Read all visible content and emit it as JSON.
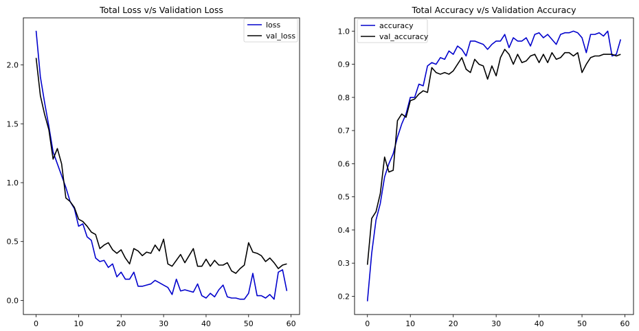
{
  "chart_data": [
    {
      "type": "line",
      "title": "Total Loss v/s Validation Loss",
      "xlabel": "",
      "ylabel": "",
      "xlim": [
        -3,
        62
      ],
      "ylim": [
        -0.12,
        2.4
      ],
      "xticks": [
        0,
        10,
        20,
        30,
        40,
        50,
        60
      ],
      "yticks": [
        0.0,
        0.5,
        1.0,
        1.5,
        2.0
      ],
      "xtick_labels": [
        "0",
        "10",
        "20",
        "30",
        "40",
        "50",
        "60"
      ],
      "ytick_labels": [
        "0.0",
        "0.5",
        "1.0",
        "1.5",
        "2.0"
      ],
      "grid": false,
      "legend_position": "top-right",
      "series": [
        {
          "name": "loss",
          "color": "#0000cc",
          "values": [
            2.29,
            1.9,
            1.68,
            1.48,
            1.26,
            1.16,
            1.06,
            0.96,
            0.84,
            0.78,
            0.63,
            0.65,
            0.54,
            0.51,
            0.36,
            0.33,
            0.34,
            0.28,
            0.31,
            0.2,
            0.24,
            0.18,
            0.18,
            0.24,
            0.12,
            0.12,
            0.13,
            0.14,
            0.17,
            0.15,
            0.13,
            0.11,
            0.05,
            0.18,
            0.08,
            0.09,
            0.08,
            0.07,
            0.14,
            0.04,
            0.02,
            0.06,
            0.03,
            0.09,
            0.13,
            0.03,
            0.02,
            0.02,
            0.01,
            0.01,
            0.06,
            0.23,
            0.04,
            0.04,
            0.02,
            0.05,
            0.01,
            0.24,
            0.26,
            0.08
          ]
        },
        {
          "name": "val_loss",
          "color": "#000000",
          "values": [
            2.06,
            1.74,
            1.58,
            1.45,
            1.2,
            1.29,
            1.16,
            0.87,
            0.84,
            0.79,
            0.69,
            0.67,
            0.63,
            0.58,
            0.56,
            0.44,
            0.47,
            0.49,
            0.43,
            0.4,
            0.43,
            0.36,
            0.31,
            0.44,
            0.42,
            0.38,
            0.41,
            0.4,
            0.47,
            0.42,
            0.52,
            0.31,
            0.29,
            0.34,
            0.39,
            0.32,
            0.38,
            0.44,
            0.29,
            0.29,
            0.35,
            0.29,
            0.34,
            0.3,
            0.3,
            0.32,
            0.25,
            0.23,
            0.27,
            0.3,
            0.49,
            0.41,
            0.4,
            0.38,
            0.33,
            0.36,
            0.32,
            0.27,
            0.3,
            0.31
          ]
        }
      ]
    },
    {
      "type": "line",
      "title": "Total Accuracy v/s Validation Accuracy",
      "xlabel": "",
      "ylabel": "",
      "xlim": [
        -3,
        62
      ],
      "ylim": [
        0.145,
        1.04
      ],
      "xticks": [
        0,
        10,
        20,
        30,
        40,
        50,
        60
      ],
      "yticks": [
        0.2,
        0.3,
        0.4,
        0.5,
        0.6,
        0.7,
        0.8,
        0.9,
        1.0
      ],
      "xtick_labels": [
        "0",
        "10",
        "20",
        "30",
        "40",
        "50",
        "60"
      ],
      "ytick_labels": [
        "0.2",
        "0.3",
        "0.4",
        "0.5",
        "0.6",
        "0.7",
        "0.8",
        "0.9",
        "1.0"
      ],
      "grid": false,
      "legend_position": "top-left",
      "series": [
        {
          "name": "accuracy",
          "color": "#0000cc",
          "values": [
            0.185,
            0.33,
            0.43,
            0.48,
            0.56,
            0.6,
            0.63,
            0.68,
            0.72,
            0.75,
            0.8,
            0.8,
            0.84,
            0.835,
            0.895,
            0.905,
            0.9,
            0.92,
            0.915,
            0.94,
            0.93,
            0.955,
            0.945,
            0.925,
            0.97,
            0.97,
            0.965,
            0.96,
            0.945,
            0.96,
            0.97,
            0.97,
            0.99,
            0.95,
            0.98,
            0.97,
            0.97,
            0.98,
            0.955,
            0.99,
            0.995,
            0.98,
            0.99,
            0.975,
            0.96,
            0.99,
            0.995,
            0.995,
            1.0,
            0.995,
            0.98,
            0.935,
            0.99,
            0.99,
            0.995,
            0.985,
            1.0,
            0.925,
            0.93,
            0.975
          ]
        },
        {
          "name": "val_accuracy",
          "color": "#000000",
          "values": [
            0.295,
            0.435,
            0.455,
            0.51,
            0.62,
            0.575,
            0.58,
            0.73,
            0.75,
            0.74,
            0.79,
            0.795,
            0.81,
            0.82,
            0.815,
            0.89,
            0.875,
            0.87,
            0.875,
            0.87,
            0.88,
            0.9,
            0.92,
            0.885,
            0.875,
            0.915,
            0.9,
            0.895,
            0.855,
            0.895,
            0.865,
            0.92,
            0.945,
            0.93,
            0.9,
            0.93,
            0.905,
            0.91,
            0.925,
            0.93,
            0.905,
            0.93,
            0.905,
            0.935,
            0.915,
            0.92,
            0.935,
            0.935,
            0.925,
            0.935,
            0.875,
            0.9,
            0.92,
            0.925,
            0.925,
            0.93,
            0.93,
            0.93,
            0.925,
            0.93
          ]
        }
      ]
    }
  ]
}
